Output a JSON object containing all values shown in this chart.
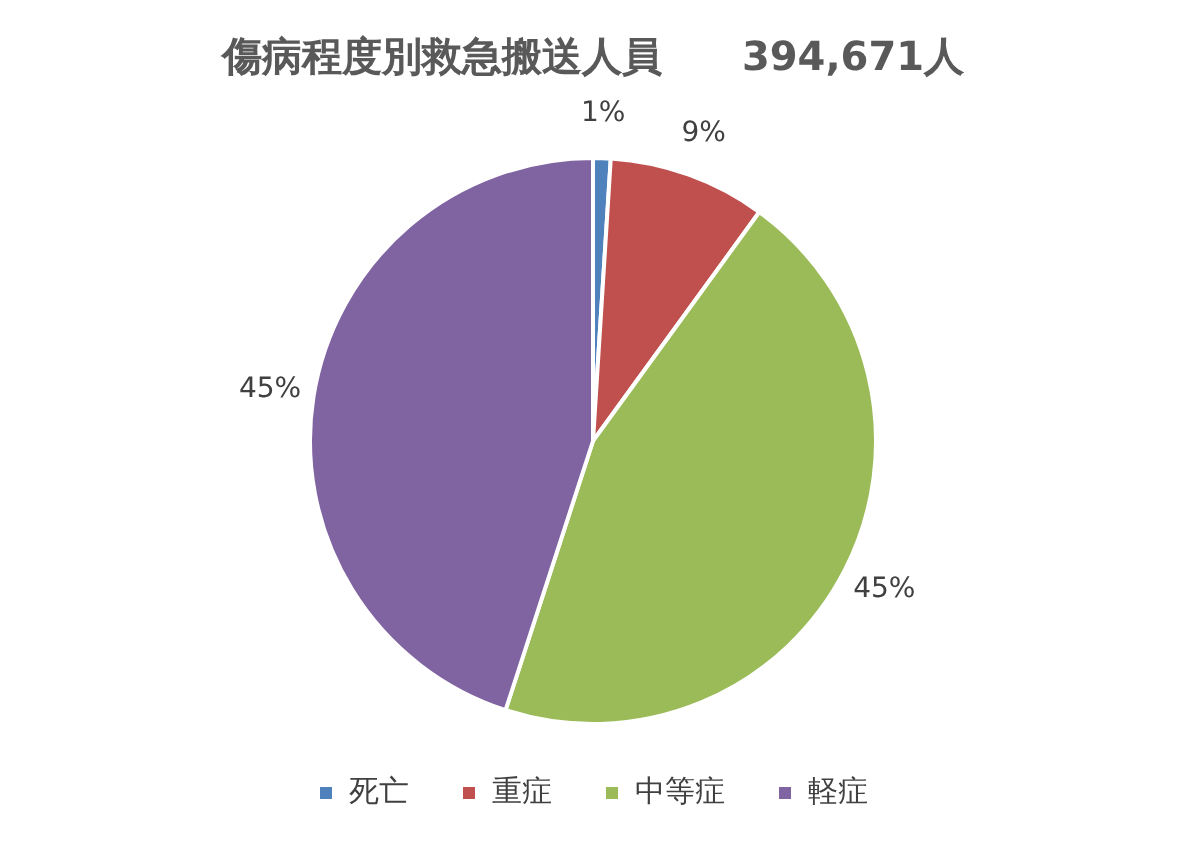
{
  "chart_data": {
    "type": "pie",
    "title": "傷病程度別救急搬送人員　　394,671人",
    "categories": [
      "死亡",
      "重症",
      "中等症",
      "軽症"
    ],
    "values": [
      1,
      9,
      45,
      45
    ],
    "value_labels": [
      "1%",
      "9%",
      "45%",
      "45%"
    ],
    "colors": [
      "#4f81bd",
      "#c0504d",
      "#9bbb59",
      "#8064a2"
    ],
    "legend": "bottom"
  }
}
